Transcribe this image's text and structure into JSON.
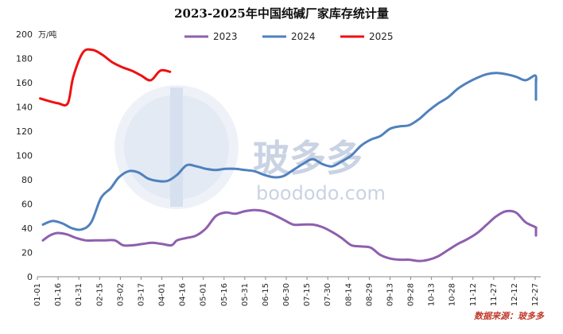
{
  "chart_data": {
    "type": "line",
    "title": "2023-2025年中国纯碱厂家库存统计量",
    "unit_label": "万/吨",
    "ylim": [
      0,
      200
    ],
    "y_ticks": [
      0,
      20,
      40,
      60,
      80,
      100,
      120,
      140,
      160,
      180,
      200
    ],
    "x_domain": [
      "01-01",
      "12-31"
    ],
    "x_ticks": [
      "01-01",
      "01-16",
      "01-31",
      "02-15",
      "03-02",
      "03-17",
      "04-01",
      "04-16",
      "05-01",
      "05-16",
      "05-31",
      "06-15",
      "06-30",
      "07-15",
      "07-30",
      "08-14",
      "08-29",
      "09-13",
      "09-28",
      "10-13",
      "10-28",
      "11-12",
      "11-27",
      "12-12",
      "12-27"
    ],
    "legend_position": "top",
    "grid": false,
    "series": [
      {
        "name": "2023",
        "color": "#8e5fae",
        "points": [
          [
            "01-05",
            30
          ],
          [
            "01-10",
            34
          ],
          [
            "01-15",
            36
          ],
          [
            "01-22",
            35
          ],
          [
            "01-29",
            32
          ],
          [
            "02-05",
            30
          ],
          [
            "02-12",
            30
          ],
          [
            "02-19",
            30
          ],
          [
            "02-26",
            30
          ],
          [
            "03-04",
            26
          ],
          [
            "03-11",
            26
          ],
          [
            "03-18",
            27
          ],
          [
            "03-25",
            28
          ],
          [
            "04-01",
            27
          ],
          [
            "04-08",
            26
          ],
          [
            "04-12",
            30
          ],
          [
            "04-19",
            32
          ],
          [
            "04-26",
            34
          ],
          [
            "05-03",
            40
          ],
          [
            "05-10",
            50
          ],
          [
            "05-17",
            53
          ],
          [
            "05-24",
            52
          ],
          [
            "05-31",
            54
          ],
          [
            "06-07",
            55
          ],
          [
            "06-14",
            54
          ],
          [
            "06-21",
            51
          ],
          [
            "06-28",
            47
          ],
          [
            "07-05",
            43
          ],
          [
            "07-12",
            43
          ],
          [
            "07-19",
            43
          ],
          [
            "07-26",
            41
          ],
          [
            "08-02",
            37
          ],
          [
            "08-09",
            32
          ],
          [
            "08-16",
            26
          ],
          [
            "08-23",
            25
          ],
          [
            "08-30",
            24
          ],
          [
            "09-06",
            18
          ],
          [
            "09-13",
            15
          ],
          [
            "09-20",
            14
          ],
          [
            "09-27",
            14
          ],
          [
            "10-04",
            13
          ],
          [
            "10-11",
            14
          ],
          [
            "10-18",
            17
          ],
          [
            "10-25",
            22
          ],
          [
            "11-01",
            27
          ],
          [
            "11-08",
            31
          ],
          [
            "11-15",
            36
          ],
          [
            "11-22",
            43
          ],
          [
            "11-29",
            50
          ],
          [
            "12-06",
            54
          ],
          [
            "12-13",
            53
          ],
          [
            "12-20",
            45
          ],
          [
            "12-27",
            41
          ],
          [
            "12-31",
            40
          ],
          [
            "12-31",
            38
          ],
          [
            "12-31",
            36
          ],
          [
            "12-31",
            34
          ]
        ]
      },
      {
        "name": "2024",
        "color": "#4f81bd",
        "points": [
          [
            "01-05",
            43
          ],
          [
            "01-12",
            46
          ],
          [
            "01-19",
            44
          ],
          [
            "01-26",
            40
          ],
          [
            "02-02",
            39
          ],
          [
            "02-09",
            45
          ],
          [
            "02-16",
            65
          ],
          [
            "02-23",
            73
          ],
          [
            "03-01",
            82
          ],
          [
            "03-08",
            87
          ],
          [
            "03-15",
            86
          ],
          [
            "03-22",
            81
          ],
          [
            "03-29",
            79
          ],
          [
            "04-05",
            79
          ],
          [
            "04-12",
            84
          ],
          [
            "04-19",
            92
          ],
          [
            "04-26",
            91
          ],
          [
            "05-03",
            89
          ],
          [
            "05-10",
            88
          ],
          [
            "05-17",
            89
          ],
          [
            "05-24",
            89
          ],
          [
            "05-31",
            88
          ],
          [
            "06-07",
            87
          ],
          [
            "06-14",
            84
          ],
          [
            "06-21",
            82
          ],
          [
            "06-28",
            83
          ],
          [
            "07-05",
            88
          ],
          [
            "07-12",
            93
          ],
          [
            "07-19",
            97
          ],
          [
            "07-26",
            93
          ],
          [
            "08-02",
            91
          ],
          [
            "08-09",
            95
          ],
          [
            "08-16",
            100
          ],
          [
            "08-23",
            108
          ],
          [
            "08-30",
            113
          ],
          [
            "09-06",
            116
          ],
          [
            "09-13",
            122
          ],
          [
            "09-20",
            124
          ],
          [
            "09-27",
            125
          ],
          [
            "10-04",
            130
          ],
          [
            "10-11",
            137
          ],
          [
            "10-18",
            143
          ],
          [
            "10-25",
            148
          ],
          [
            "11-01",
            155
          ],
          [
            "11-08",
            160
          ],
          [
            "11-15",
            164
          ],
          [
            "11-22",
            167
          ],
          [
            "11-29",
            168
          ],
          [
            "12-06",
            167
          ],
          [
            "12-13",
            165
          ],
          [
            "12-20",
            162
          ],
          [
            "12-27",
            166
          ],
          [
            "12-31",
            160
          ],
          [
            "12-31",
            163
          ],
          [
            "12-31",
            157
          ],
          [
            "12-31",
            146
          ]
        ]
      },
      {
        "name": "2025",
        "color": "#ee1111",
        "points": [
          [
            "01-03",
            147
          ],
          [
            "01-09",
            145
          ],
          [
            "01-16",
            143
          ],
          [
            "01-23",
            143
          ],
          [
            "01-27",
            165
          ],
          [
            "02-03",
            185
          ],
          [
            "02-10",
            187
          ],
          [
            "02-17",
            183
          ],
          [
            "02-24",
            177
          ],
          [
            "03-03",
            173
          ],
          [
            "03-10",
            170
          ],
          [
            "03-17",
            166
          ],
          [
            "03-24",
            162
          ],
          [
            "03-31",
            170
          ],
          [
            "04-07",
            169
          ]
        ]
      }
    ]
  },
  "watermark": {
    "text": "boododo.com",
    "cn_text": "玻多多"
  },
  "source_text": "数据来源：玻多多"
}
